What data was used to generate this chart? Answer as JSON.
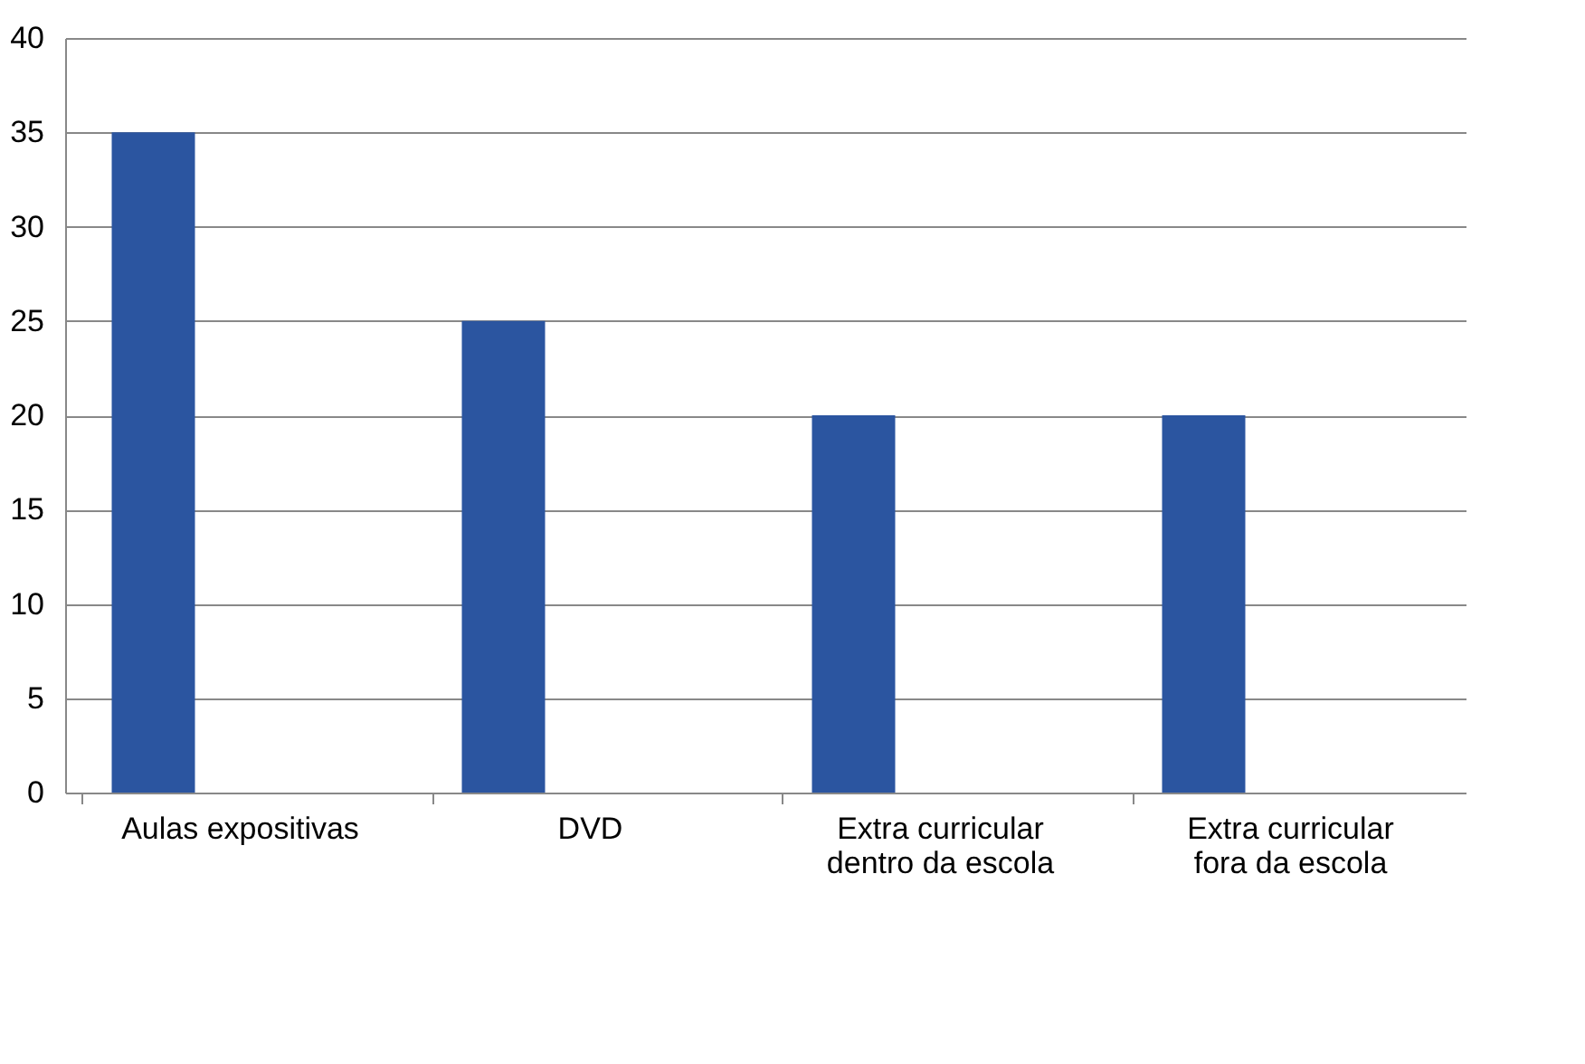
{
  "chart_data": {
    "type": "bar",
    "categories": [
      "Aulas expositivas",
      "DVD",
      "Extra curricular dentro da escola",
      "Extra curricular fora da escola"
    ],
    "values": [
      35,
      25,
      20,
      20
    ],
    "color": "#2b55a0",
    "ylim": [
      0,
      40
    ],
    "yticks": [
      0,
      5,
      10,
      15,
      20,
      25,
      30,
      35,
      40
    ],
    "grid": "y"
  }
}
